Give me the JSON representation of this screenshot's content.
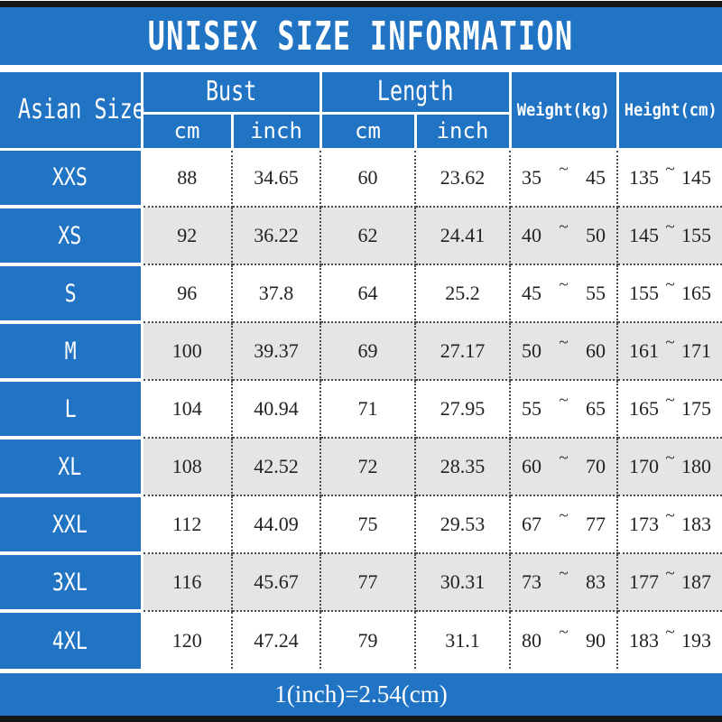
{
  "title": "UNISEX SIZE INFORMATION",
  "colors": {
    "header_blue": "#2173C4",
    "alt_row_gray": "#E6E4E6",
    "frame_bar_black": "#161616",
    "data_text": "#222222",
    "header_text": "#ffffff"
  },
  "chart_data": {
    "type": "table",
    "title": "UNISEX SIZE INFORMATION",
    "corner_header": "Asian Size",
    "column_groups": [
      {
        "label": "Bust",
        "sub": [
          "cm",
          "inch"
        ]
      },
      {
        "label": "Length",
        "sub": [
          "cm",
          "inch"
        ]
      }
    ],
    "single_columns": [
      "Weight(kg)",
      "Height(cm)"
    ],
    "range_separator": "~",
    "rows": [
      {
        "size": "XXS",
        "bust_cm": "88",
        "bust_inch": "34.65",
        "length_cm": "60",
        "length_inch": "23.62",
        "weight_kg": [
          "35",
          "45"
        ],
        "height_cm": [
          "135",
          "145"
        ]
      },
      {
        "size": "XS",
        "bust_cm": "92",
        "bust_inch": "36.22",
        "length_cm": "62",
        "length_inch": "24.41",
        "weight_kg": [
          "40",
          "50"
        ],
        "height_cm": [
          "145",
          "155"
        ]
      },
      {
        "size": "S",
        "bust_cm": "96",
        "bust_inch": "37.8",
        "length_cm": "64",
        "length_inch": "25.2",
        "weight_kg": [
          "45",
          "55"
        ],
        "height_cm": [
          "155",
          "165"
        ]
      },
      {
        "size": "M",
        "bust_cm": "100",
        "bust_inch": "39.37",
        "length_cm": "69",
        "length_inch": "27.17",
        "weight_kg": [
          "50",
          "60"
        ],
        "height_cm": [
          "161",
          "171"
        ]
      },
      {
        "size": "L",
        "bust_cm": "104",
        "bust_inch": "40.94",
        "length_cm": "71",
        "length_inch": "27.95",
        "weight_kg": [
          "55",
          "65"
        ],
        "height_cm": [
          "165",
          "175"
        ]
      },
      {
        "size": "XL",
        "bust_cm": "108",
        "bust_inch": "42.52",
        "length_cm": "72",
        "length_inch": "28.35",
        "weight_kg": [
          "60",
          "70"
        ],
        "height_cm": [
          "170",
          "180"
        ]
      },
      {
        "size": "XXL",
        "bust_cm": "112",
        "bust_inch": "44.09",
        "length_cm": "75",
        "length_inch": "29.53",
        "weight_kg": [
          "67",
          "77"
        ],
        "height_cm": [
          "173",
          "183"
        ]
      },
      {
        "size": "3XL",
        "bust_cm": "116",
        "bust_inch": "45.67",
        "length_cm": "77",
        "length_inch": "30.31",
        "weight_kg": [
          "73",
          "83"
        ],
        "height_cm": [
          "177",
          "187"
        ]
      },
      {
        "size": "4XL",
        "bust_cm": "120",
        "bust_inch": "47.24",
        "length_cm": "79",
        "length_inch": "31.1",
        "weight_kg": [
          "80",
          "90"
        ],
        "height_cm": [
          "183",
          "193"
        ]
      }
    ],
    "footer_note": "1(inch)=2.54(cm)"
  }
}
